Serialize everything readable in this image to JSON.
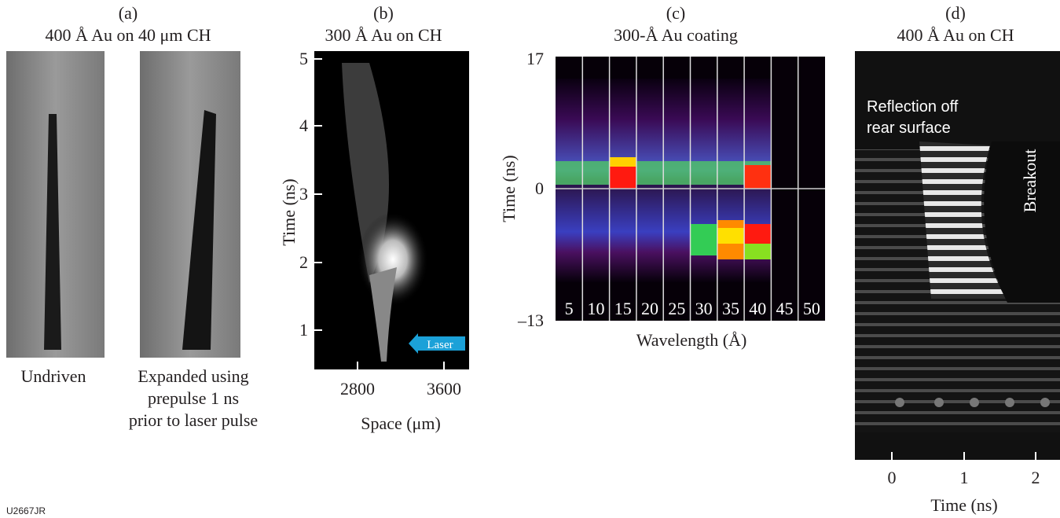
{
  "footer": "U2667JR",
  "panels": [
    {
      "label": "(a)",
      "title": "400 Å Au on 40 μm CH",
      "captions": [
        "Undriven",
        "Expanded using",
        "prepulse 1 ns",
        "prior to laser pulse"
      ]
    },
    {
      "label": "(b)",
      "title": "300 Å Au on CH",
      "y_axis_label": "Time (ns)",
      "yticks": [
        "5",
        "4",
        "3",
        "2",
        "1"
      ],
      "xticks": [
        "2800",
        "3600"
      ],
      "x_axis_label": "Space (μm)",
      "annotation": "Laser"
    },
    {
      "label": "(c)",
      "title": "300-Å Au coating",
      "y_axis_label": "Time (ns)",
      "yticks": [
        "17",
        "0",
        "–13"
      ],
      "channels": [
        "5",
        "10",
        "15",
        "20",
        "25",
        "30",
        "35",
        "40",
        "45",
        "50"
      ],
      "x_axis_label": "Wavelength (Å)"
    },
    {
      "label": "(d)",
      "title": "400 Å Au on CH",
      "annotations": [
        "Reflection off",
        "rear surface",
        "Breakout"
      ],
      "xticks": [
        "0",
        "1",
        "2"
      ],
      "x_axis_label": "Time (ns)"
    }
  ]
}
